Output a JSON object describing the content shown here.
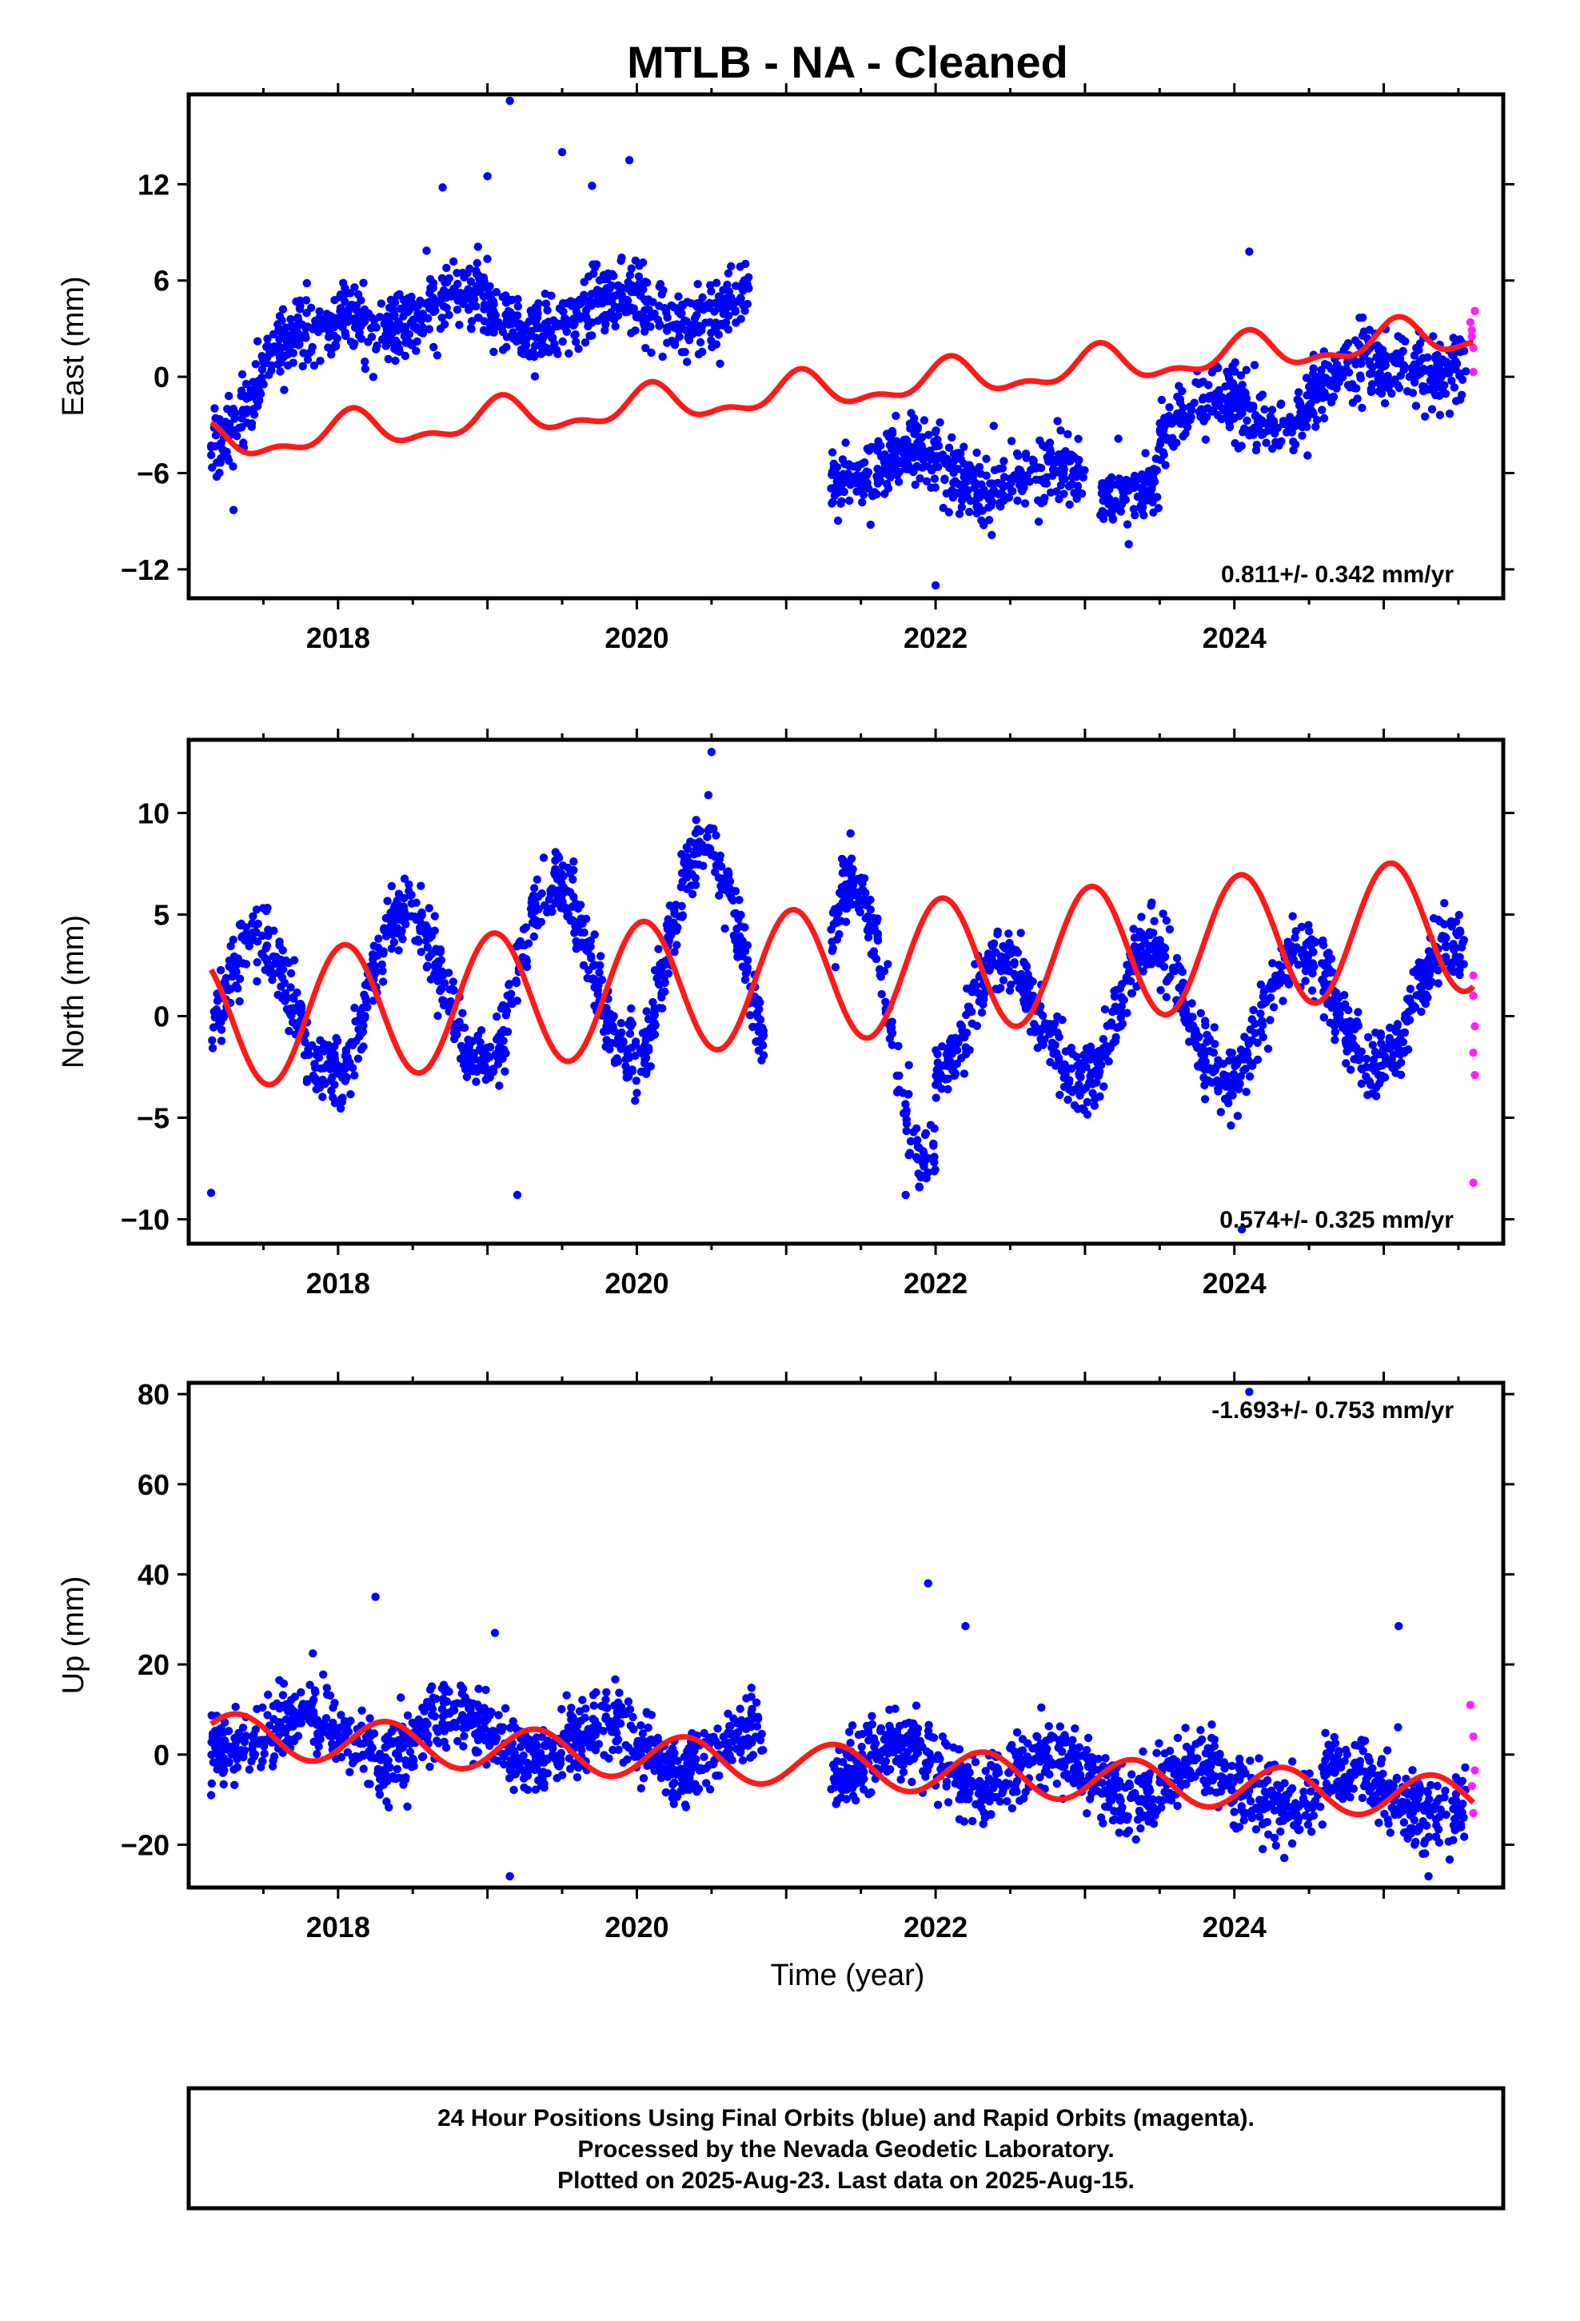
{
  "title": "MTLB  - NA - Cleaned",
  "xlabel": "Time (year)",
  "colors": {
    "final": "#0000ff",
    "rapid": "#ff22ff",
    "model": "#ff1a1a",
    "frame": "#000000"
  },
  "footer": {
    "line1": "24 Hour Positions Using Final Orbits (blue) and Rapid Orbits (magenta).",
    "line2": "Processed by the Nevada Geodetic Laboratory.",
    "line3": "Plotted on 2025-Aug-23. Last data on 2025-Aug-15."
  },
  "chart_data": [
    {
      "type": "scatter",
      "panel": "east",
      "ylabel": "East (mm)",
      "xlim": [
        2017.0,
        2025.8
      ],
      "ylim": [
        -13.8,
        17.6
      ],
      "xticks": [
        "2018",
        "2020",
        "2022",
        "2024"
      ],
      "yticks": [
        "12",
        "6",
        "0",
        "-6",
        "-12"
      ],
      "rate_label": "0.811+/- 0.342 mm/yr",
      "legend": "none",
      "grid": false,
      "segments": [
        {
          "x": [
            2017.15,
            2017.5
          ],
          "y": [
            -4.2,
            0.5
          ]
        },
        {
          "x": [
            2017.5,
            2018.0
          ],
          "y": [
            1.5,
            2.5
          ]
        },
        {
          "x": [
            2018.0,
            2019.0
          ],
          "y": [
            3.5,
            4.5
          ]
        },
        {
          "x": [
            2019.0,
            2020.75
          ],
          "y": [
            3.5,
            4.5
          ]
        },
        {
          "x": [
            2021.3,
            2023.0
          ],
          "y": [
            -5.5,
            -6.5
          ]
        },
        {
          "x": [
            2023.1,
            2023.5
          ],
          "y": [
            -7.0,
            -6.0
          ]
        },
        {
          "x": [
            2023.5,
            2024.5
          ],
          "y": [
            -3.0,
            -1.8
          ]
        },
        {
          "x": [
            2024.5,
            2025.55
          ],
          "y": [
            -0.8,
            1.5
          ]
        }
      ],
      "outliers": [
        [
          2019.15,
          17.2
        ],
        [
          2019.5,
          14.0
        ],
        [
          2019.95,
          13.5
        ],
        [
          2019.0,
          12.5
        ],
        [
          2018.7,
          11.8
        ],
        [
          2024.1,
          7.8
        ],
        [
          2017.3,
          -8.3
        ],
        [
          2022.0,
          -13.0
        ],
        [
          2019.7,
          11.9
        ]
      ],
      "rapid": [
        [
          2025.58,
          3.4
        ],
        [
          2025.59,
          2.5
        ],
        [
          2025.6,
          1.8
        ],
        [
          2025.6,
          0.3
        ],
        [
          2025.61,
          4.1
        ],
        [
          2025.59,
          2.9
        ]
      ],
      "model": {
        "t0": 2017.15,
        "t1": 2025.6,
        "offset": -4.2,
        "rate": 0.811,
        "annual": 1.0,
        "annual_phase": 1.0,
        "semi": 0.5,
        "semi_phase": 0.3
      }
    },
    {
      "type": "scatter",
      "panel": "north",
      "ylabel": "North (mm)",
      "xlim": [
        2017.0,
        2025.8
      ],
      "ylim": [
        -11.2,
        13.6
      ],
      "xticks": [
        "2018",
        "2020",
        "2022",
        "2024"
      ],
      "yticks": [
        "10",
        "5",
        "0",
        "-5",
        "-10"
      ],
      "rate_label": "0.574+/- 0.325 mm/yr",
      "legend": "none",
      "grid": false,
      "segments": [
        {
          "x": [
            2017.15,
            2020.85
          ],
          "y": [
            0.0,
            3.5
          ]
        },
        {
          "x": [
            2021.3,
            2025.55
          ],
          "y": [
            -0.5,
            0.5
          ]
        }
      ],
      "seasonal_amp": [
        3.5,
        4.0,
        4.5,
        5.5,
        7.0,
        3.0,
        3.5,
        3.0,
        3.0
      ],
      "outliers": [
        [
          2017.15,
          -8.7
        ],
        [
          2019.2,
          -8.8
        ],
        [
          2021.8,
          -8.8
        ],
        [
          2024.05,
          -10.5
        ],
        [
          2020.5,
          13.0
        ]
      ],
      "rapid": [
        [
          2025.6,
          2.0
        ],
        [
          2025.6,
          1.0
        ],
        [
          2025.61,
          -0.5
        ],
        [
          2025.6,
          -1.8
        ],
        [
          2025.61,
          -2.9
        ],
        [
          2025.6,
          -8.2
        ]
      ],
      "model": {
        "t0": 2017.15,
        "t1": 2025.6,
        "offset": -0.3,
        "rate": 0.574,
        "annual": 3.3,
        "annual_phase": 1.3,
        "semi": 0.0,
        "semi_phase": 0.0
      }
    },
    {
      "type": "scatter",
      "panel": "up",
      "ylabel": "Up (mm)",
      "xlim": [
        2017.0,
        2025.8
      ],
      "ylim": [
        -29.5,
        82.5
      ],
      "xticks": [
        "2018",
        "2020",
        "2022",
        "2024"
      ],
      "yticks": [
        "80",
        "60",
        "40",
        "20",
        "0",
        "-20"
      ],
      "rate_label": "-1.693+/- 0.753 mm/yr",
      "legend": "none",
      "grid": false,
      "segments": [
        {
          "x": [
            2017.15,
            2020.85
          ],
          "y": [
            5.0,
            1.5
          ]
        },
        {
          "x": [
            2021.3,
            2025.55
          ],
          "y": [
            -1.0,
            -10.0
          ]
        }
      ],
      "outliers": [
        [
          2018.25,
          35.0
        ],
        [
          2019.05,
          27.0
        ],
        [
          2021.95,
          38.0
        ],
        [
          2022.2,
          28.5
        ],
        [
          2025.1,
          28.5
        ],
        [
          2019.15,
          -27.0
        ],
        [
          2025.3,
          -27.0
        ],
        [
          2024.1,
          80.5
        ],
        [
          2017.15,
          -9.0
        ]
      ],
      "rapid": [
        [
          2025.58,
          11.0
        ],
        [
          2025.6,
          4.0
        ],
        [
          2025.59,
          -7.0
        ],
        [
          2025.6,
          -13.0
        ],
        [
          2025.61,
          -3.5
        ]
      ],
      "model": {
        "t0": 2017.15,
        "t1": 2025.6,
        "offset": 4.5,
        "rate": -1.693,
        "annual": 4.8,
        "annual_phase": -0.45,
        "semi": 0.0,
        "semi_phase": 0.0
      }
    }
  ]
}
